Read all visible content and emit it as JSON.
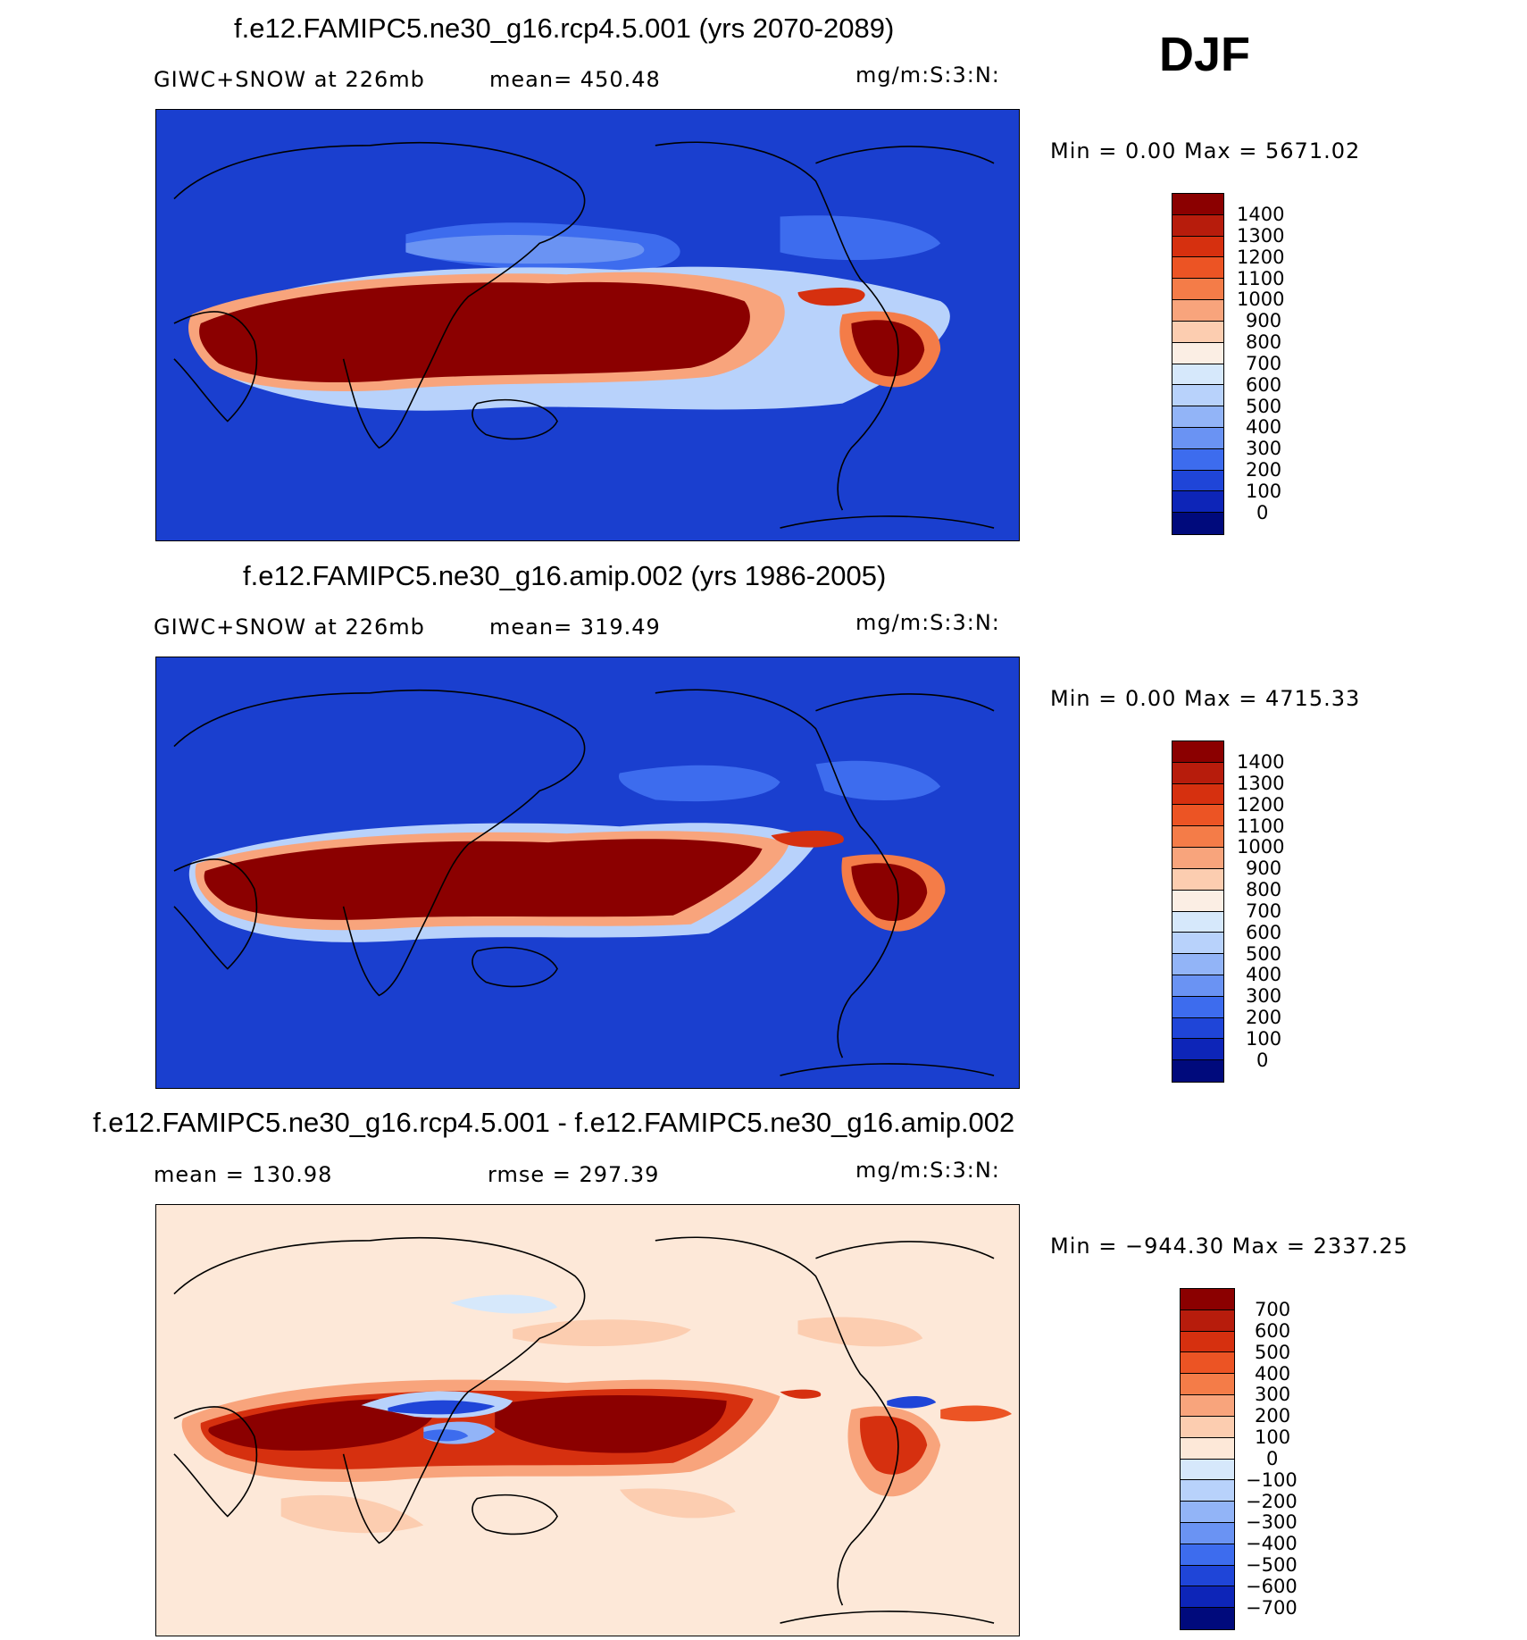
{
  "season": "DJF",
  "panels": [
    {
      "title": "f.e12.FAMIPC5.ne30_g16.rcp4.5.001 (yrs 2070-2089)",
      "left_text": "GIWC+SNOW at 226mb",
      "mid_text": "mean= 450.48",
      "units": "mg/m:S:3:N:",
      "minmax": "Min =    0.00 Max = 5671.02",
      "legend_labels": [
        "1400",
        "1300",
        "1200",
        "1100",
        "1000",
        "900",
        "800",
        "700",
        "600",
        "500",
        "400",
        "300",
        "200",
        "100",
        "0"
      ],
      "legend_colors": [
        "#8b0000",
        "#b71c0c",
        "#d6300f",
        "#ec5424",
        "#f47c48",
        "#f8a47c",
        "#fccdb0",
        "#fbeee4",
        "#d6e8fb",
        "#b8d2fb",
        "#92b4f7",
        "#6a93f3",
        "#3d6cee",
        "#1f45d8",
        "#0d25b8",
        "#000a7c"
      ],
      "map_style": "base"
    },
    {
      "title": "f.e12.FAMIPC5.ne30_g16.amip.002 (yrs 1986-2005)",
      "left_text": "GIWC+SNOW at 226mb",
      "mid_text": "mean= 319.49",
      "units": "mg/m:S:3:N:",
      "minmax": "Min =    0.00 Max = 4715.33",
      "legend_labels": [
        "1400",
        "1300",
        "1200",
        "1100",
        "1000",
        "900",
        "800",
        "700",
        "600",
        "500",
        "400",
        "300",
        "200",
        "100",
        "0"
      ],
      "legend_colors": [
        "#8b0000",
        "#b71c0c",
        "#d6300f",
        "#ec5424",
        "#f47c48",
        "#f8a47c",
        "#fccdb0",
        "#fbeee4",
        "#d6e8fb",
        "#b8d2fb",
        "#92b4f7",
        "#6a93f3",
        "#3d6cee",
        "#1f45d8",
        "#0d25b8",
        "#000a7c"
      ],
      "map_style": "base"
    },
    {
      "title": "f.e12.FAMIPC5.ne30_g16.rcp4.5.001 - f.e12.FAMIPC5.ne30_g16.amip.002",
      "left_text": "mean = 130.98",
      "mid_text": "rmse = 297.39",
      "units": "mg/m:S:3:N:",
      "minmax": "Min = −944.30 Max = 2337.25",
      "legend_labels": [
        "700",
        "600",
        "500",
        "400",
        "300",
        "200",
        "100",
        "0",
        "−100",
        "−200",
        "−300",
        "−400",
        "−500",
        "−600",
        "−700"
      ],
      "legend_colors": [
        "#8b0000",
        "#b71c0c",
        "#d6300f",
        "#ec5424",
        "#f47c48",
        "#f8a47c",
        "#fccdb0",
        "#fde8d8",
        "#d6e8fb",
        "#b8d2fb",
        "#92b4f7",
        "#6a93f3",
        "#3d6cee",
        "#1f45d8",
        "#0d25b8",
        "#000a7c"
      ],
      "map_style": "diff"
    }
  ]
}
